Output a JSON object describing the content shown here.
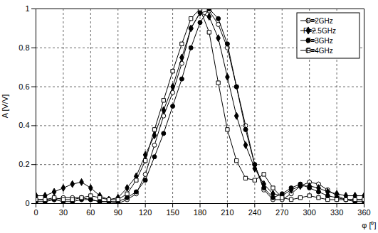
{
  "chart_data": {
    "type": "line",
    "x_label": "φ [⁰]",
    "y_label": "A [V/V]",
    "x": [
      0,
      10,
      20,
      30,
      40,
      50,
      60,
      70,
      80,
      90,
      100,
      110,
      120,
      130,
      140,
      150,
      160,
      170,
      180,
      190,
      200,
      210,
      220,
      230,
      240,
      250,
      260,
      270,
      280,
      290,
      300,
      310,
      320,
      330,
      340,
      350,
      360
    ],
    "series": [
      {
        "name": "F=2GHz",
        "color": "#000000",
        "marker": "circle-open",
        "values": [
          0.02,
          0.02,
          0.02,
          0.03,
          0.03,
          0.03,
          0.02,
          0.01,
          0.01,
          0.0,
          0.02,
          0.05,
          0.15,
          0.3,
          0.45,
          0.57,
          0.72,
          0.9,
          0.98,
          0.99,
          0.92,
          0.8,
          0.6,
          0.4,
          0.2,
          0.07,
          0.02,
          0.02,
          0.05,
          0.09,
          0.11,
          0.1,
          0.07,
          0.04,
          0.02,
          0.02,
          0.02
        ]
      },
      {
        "name": "F=2.5GHz",
        "color": "#000000",
        "marker": "diamond",
        "values": [
          0.04,
          0.04,
          0.06,
          0.08,
          0.1,
          0.11,
          0.08,
          0.04,
          0.02,
          0.03,
          0.08,
          0.14,
          0.25,
          0.35,
          0.48,
          0.6,
          0.75,
          0.9,
          0.98,
          0.96,
          0.85,
          0.65,
          0.45,
          0.3,
          0.18,
          0.1,
          0.05,
          0.04,
          0.07,
          0.09,
          0.09,
          0.08,
          0.06,
          0.05,
          0.04,
          0.04,
          0.04
        ]
      },
      {
        "name": "F=3GHz",
        "color": "#000000",
        "marker": "circle",
        "values": [
          0.01,
          0.01,
          0.02,
          0.01,
          0.01,
          0.02,
          0.02,
          0.01,
          0.01,
          0.01,
          0.03,
          0.06,
          0.12,
          0.24,
          0.36,
          0.5,
          0.64,
          0.8,
          0.93,
          1.0,
          0.95,
          0.82,
          0.6,
          0.38,
          0.2,
          0.08,
          0.03,
          0.05,
          0.08,
          0.1,
          0.08,
          0.06,
          0.04,
          0.03,
          0.02,
          0.01,
          0.01
        ]
      },
      {
        "name": "F=4GHz",
        "color": "#000000",
        "marker": "square-open",
        "values": [
          0.02,
          0.02,
          0.03,
          0.02,
          0.02,
          0.03,
          0.04,
          0.03,
          0.02,
          0.02,
          0.05,
          0.12,
          0.22,
          0.38,
          0.53,
          0.68,
          0.82,
          0.95,
          1.0,
          0.88,
          0.62,
          0.38,
          0.22,
          0.13,
          0.12,
          0.15,
          0.08,
          0.03,
          0.02,
          0.03,
          0.04,
          0.03,
          0.02,
          0.02,
          0.02,
          0.02,
          0.02
        ]
      }
    ],
    "xlim": [
      0,
      360
    ],
    "xticks": [
      0,
      30,
      60,
      90,
      120,
      150,
      180,
      210,
      240,
      270,
      300,
      330,
      360
    ],
    "ylim": [
      0,
      1
    ],
    "yticks": [
      0,
      0.2,
      0.4,
      0.6,
      0.8,
      1
    ],
    "grid": true,
    "legend": "top-right"
  }
}
